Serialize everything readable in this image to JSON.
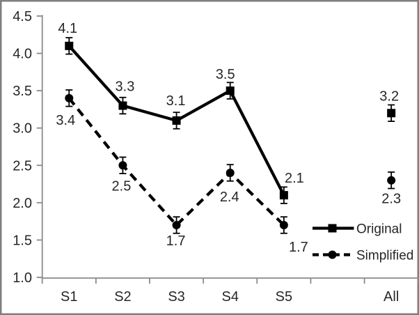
{
  "chart_data": {
    "type": "line",
    "title": "",
    "categories": [
      "S1",
      "S2",
      "S3",
      "S4",
      "S5",
      "",
      "All"
    ],
    "series": [
      {
        "name": "Original",
        "line_style": "solid",
        "marker": "square",
        "color": "#000000",
        "values": [
          4.1,
          3.3,
          3.1,
          3.5,
          2.1,
          null,
          3.2
        ],
        "point_labels": [
          "4.1",
          "3.3",
          "3.1",
          "3.5",
          "2.1",
          "",
          "3.2"
        ]
      },
      {
        "name": "Simplified",
        "line_style": "dashed",
        "marker": "circle",
        "color": "#000000",
        "values": [
          3.4,
          2.5,
          1.7,
          2.4,
          1.7,
          null,
          2.3
        ],
        "point_labels": [
          "3.4",
          "2.5",
          "1.7",
          "2.4",
          "1.7",
          "",
          "2.3"
        ]
      }
    ],
    "error_bars": {
      "visible": true,
      "plus_minus": 0.11
    },
    "y_axis": {
      "min": 1.0,
      "max": 4.5,
      "step": 0.5,
      "tick_labels": [
        "4.5",
        "4.0",
        "3.5",
        "3.0",
        "2.5",
        "2.0",
        "1.5",
        "1.0"
      ]
    },
    "x_axis": {
      "visible_tick_labels": [
        "S1",
        "S2",
        "S3",
        "S4",
        "S5",
        "All"
      ]
    },
    "legend": {
      "position": "inside-bottom-right",
      "entries": [
        "Original",
        "Simplified"
      ]
    },
    "grid": "off",
    "colors": {
      "series": "#000000",
      "axis_line": "#8a8a8a",
      "text": "#262626",
      "chart_border": "#7f7f7f",
      "background": "#ffffff"
    }
  }
}
